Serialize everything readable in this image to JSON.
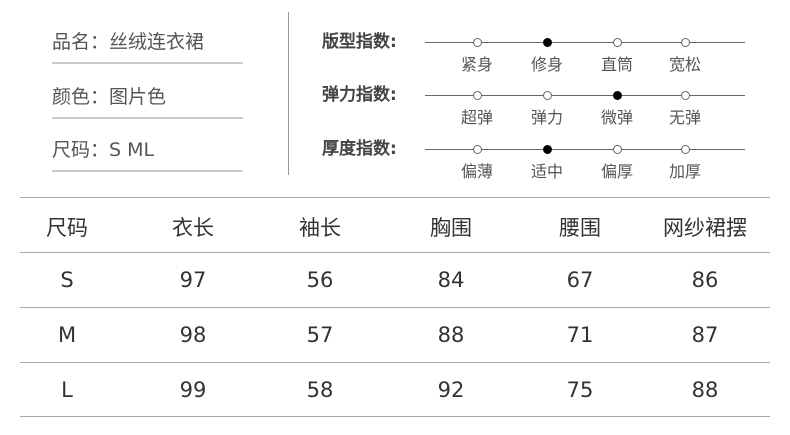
{
  "info": [
    {
      "label": "品名：",
      "value": "丝绒连衣裙"
    },
    {
      "label": "颜色：",
      "value": "图片色"
    },
    {
      "label": "尺码：",
      "value": "S ML"
    }
  ],
  "indices": [
    {
      "label": "版型指数:",
      "options": [
        "紧身",
        "修身",
        "直筒",
        "宽松"
      ],
      "selected": 1
    },
    {
      "label": "弹力指数:",
      "options": [
        "超弹",
        "弹力",
        "微弹",
        "无弹"
      ],
      "selected": 2
    },
    {
      "label": "厚度指数:",
      "options": [
        "偏薄",
        "适中",
        "偏厚",
        "加厚"
      ],
      "selected": 1
    }
  ],
  "table": {
    "headers": [
      "尺码",
      "衣长",
      "袖长",
      "胸围",
      "腰围",
      "网纱裙摆"
    ],
    "rows": [
      [
        "S",
        "97",
        "56",
        "84",
        "67",
        "86"
      ],
      [
        "M",
        "98",
        "57",
        "88",
        "71",
        "87"
      ],
      [
        "L",
        "99",
        "58",
        "92",
        "75",
        "88"
      ]
    ]
  }
}
